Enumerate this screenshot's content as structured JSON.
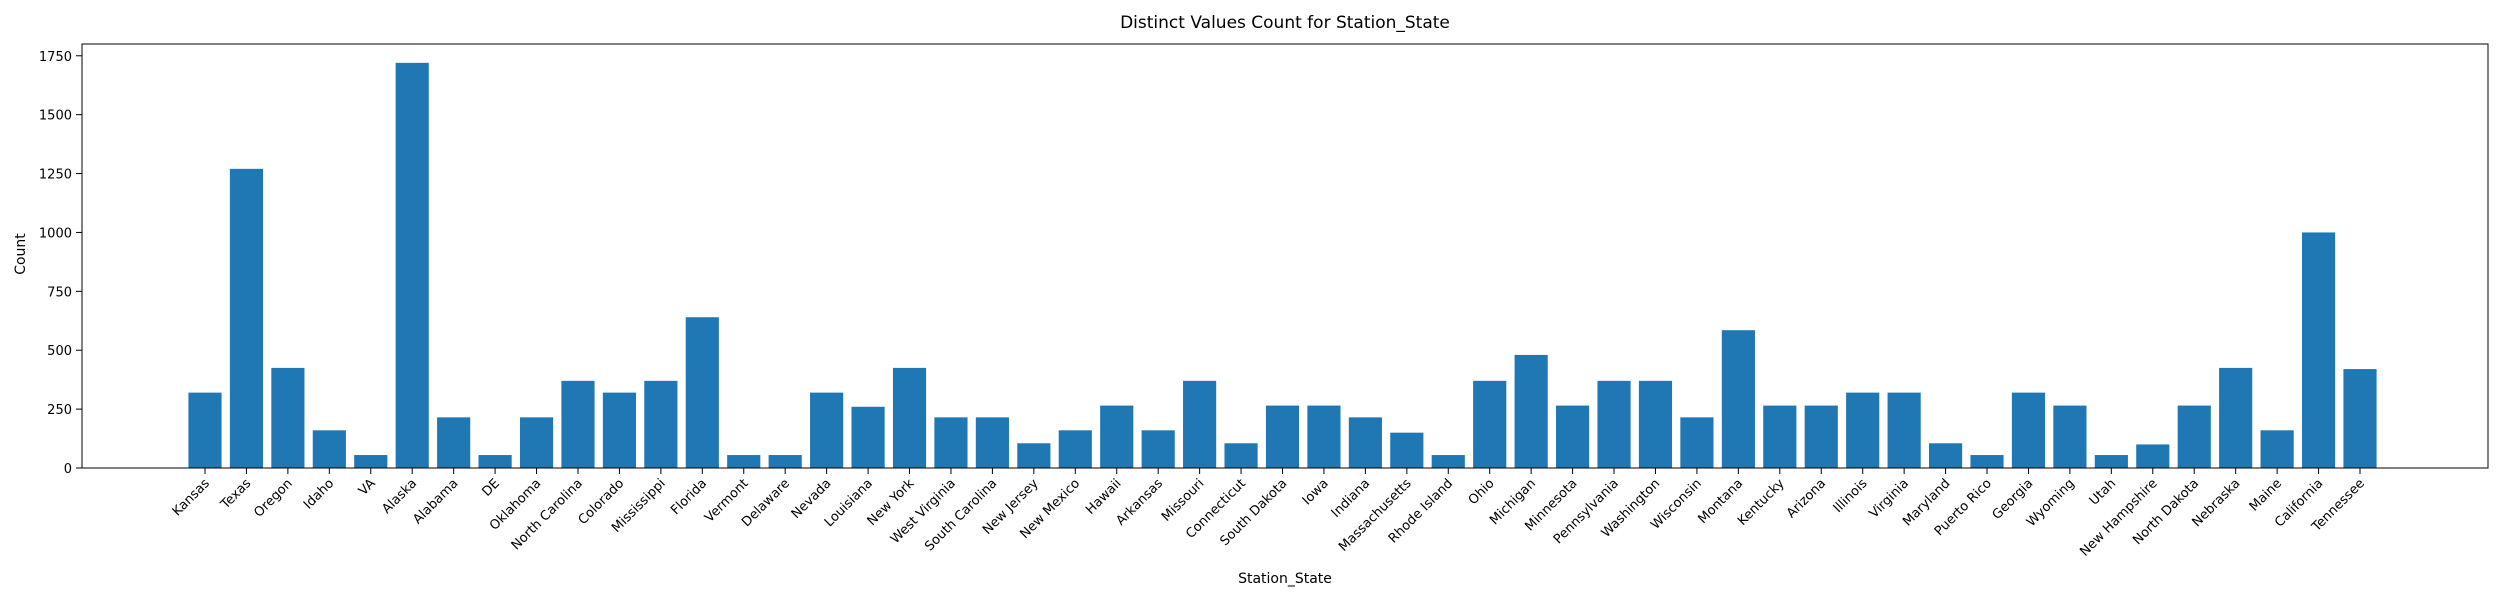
{
  "chart_data": {
    "type": "bar",
    "title": "Distinct Values Count for Station_State",
    "xlabel": "Station_State",
    "ylabel": "Count",
    "ylim": [
      0,
      1800
    ],
    "yticks": [
      0,
      250,
      500,
      750,
      1000,
      1250,
      1500,
      1750
    ],
    "grid": false,
    "bar_color": "#1f77b4",
    "categories": [
      "Kansas",
      "Texas",
      "Oregon",
      "Idaho",
      "VA",
      "Alaska",
      "Alabama",
      "DE",
      "Oklahoma",
      "North Carolina",
      "Colorado",
      "Mississippi",
      "Florida",
      "Vermont",
      "Delaware",
      "Nevada",
      "Louisiana",
      "New York",
      "West Virginia",
      "South Carolina",
      "New Jersey",
      "New Mexico",
      "Hawaii",
      "Arkansas",
      "Missouri",
      "Connecticut",
      "South Dakota",
      "Iowa",
      "Indiana",
      "Massachusetts",
      "Rhode Island",
      "Ohio",
      "Michigan",
      "Minnesota",
      "Pennsylvania",
      "Washington",
      "Wisconsin",
      "Montana",
      "Kentucky",
      "Arizona",
      "Illinois",
      "Virginia",
      "Maryland",
      "Puerto Rico",
      "Georgia",
      "Wyoming",
      "Utah",
      "New Hampshire",
      "North Dakota",
      "Nebraska",
      "Maine",
      "California",
      "Tennessee"
    ],
    "values": [
      320,
      1270,
      425,
      160,
      55,
      1720,
      215,
      55,
      215,
      370,
      320,
      370,
      640,
      55,
      55,
      320,
      260,
      425,
      215,
      215,
      105,
      160,
      265,
      160,
      370,
      105,
      265,
      265,
      215,
      150,
      55,
      370,
      480,
      265,
      370,
      370,
      215,
      585,
      265,
      265,
      320,
      320,
      105,
      55,
      320,
      265,
      55,
      100,
      265,
      425,
      160,
      1000,
      420
    ]
  }
}
